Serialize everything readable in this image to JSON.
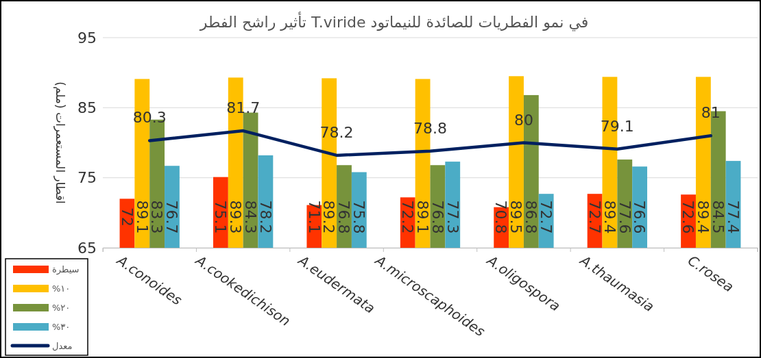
{
  "chart_data": {
    "type": "bar",
    "title": "تأثير راشح الفطر T.viride في نمو الفطريات للصائدة للنيماتود",
    "ylabel": "اقطار المستعمرات (ملم)",
    "categories": [
      "A.conoides",
      "A.cookedichison",
      "A.eudermata",
      "A.microscaphoides",
      "A.oligospora",
      "A.thaumasia",
      "C.rosea"
    ],
    "series": [
      {
        "name": "سيطرة",
        "color": "#ff3300",
        "values": [
          72,
          75.1,
          71.1,
          72.2,
          70.8,
          72.7,
          72.6
        ]
      },
      {
        "name": "%١٠",
        "color": "#ffc000",
        "values": [
          89.1,
          89.3,
          89.2,
          89.1,
          89.5,
          89.4,
          89.4
        ]
      },
      {
        "name": "%٢٠",
        "color": "#77933c",
        "values": [
          83.3,
          84.3,
          76.8,
          76.8,
          86.8,
          77.6,
          84.5
        ]
      },
      {
        "name": "%٣٠",
        "color": "#4bacc6",
        "values": [
          76.7,
          78.2,
          75.8,
          77.3,
          72.7,
          76.6,
          77.4
        ]
      },
      {
        "name": "معدل",
        "type": "line",
        "color": "#002060",
        "values": [
          80.3,
          81.7,
          78.2,
          78.8,
          80,
          79.1,
          81
        ]
      }
    ],
    "ylim": [
      65,
      95
    ],
    "yticks": [
      65,
      75,
      85,
      95
    ],
    "grid": "y",
    "legend": "bottom left",
    "data_labels": true,
    "marker": "none",
    "line_style": "solid"
  }
}
